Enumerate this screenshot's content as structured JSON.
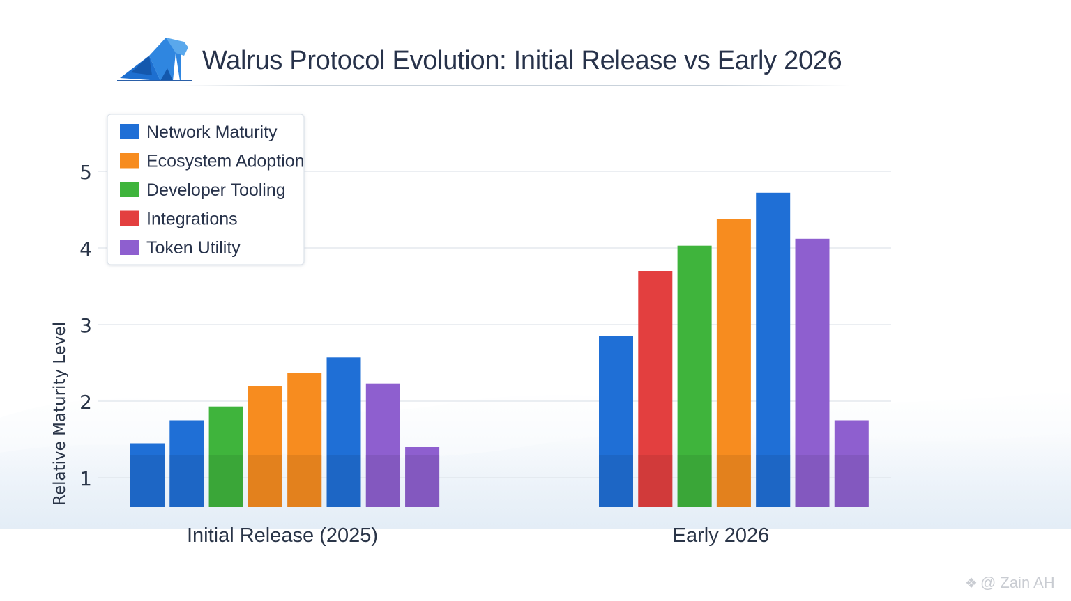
{
  "chart_data": {
    "type": "bar",
    "title": "Walrus Protocol Evolution: Initial Release vs Early 2026",
    "xlabel": "",
    "ylabel": "Relative Maturity Level",
    "ylim": [
      0.6,
      5.5
    ],
    "yticks": [
      1,
      2,
      3,
      4,
      5
    ],
    "grid": true,
    "legend_position": "top-left",
    "legend": [
      {
        "name": "Network Maturity",
        "color": "#1f6fd6"
      },
      {
        "name": "Ecosystem Adoption",
        "color": "#f78c1f"
      },
      {
        "name": "Developer Tooling",
        "color": "#3fb43c"
      },
      {
        "name": "Integrations",
        "color": "#e33f3f"
      },
      {
        "name": "Token Utility",
        "color": "#8e5fcf"
      }
    ],
    "groups": [
      {
        "label": "Initial Release (2025)",
        "bars": [
          {
            "series": "Network Maturity",
            "value": 1.45
          },
          {
            "series": "Network Maturity",
            "value": 1.75
          },
          {
            "series": "Developer Tooling",
            "value": 1.93
          },
          {
            "series": "Ecosystem Adoption",
            "value": 2.2
          },
          {
            "series": "Ecosystem Adoption",
            "value": 2.37
          },
          {
            "series": "Network Maturity",
            "value": 2.57
          },
          {
            "series": "Token Utility",
            "value": 2.23
          },
          {
            "series": "Token Utility",
            "value": 1.4
          }
        ]
      },
      {
        "label": "Early 2026",
        "bars": [
          {
            "series": "Network Maturity",
            "value": 2.85
          },
          {
            "series": "Integrations",
            "value": 3.7
          },
          {
            "series": "Developer Tooling",
            "value": 4.03
          },
          {
            "series": "Ecosystem Adoption",
            "value": 4.38
          },
          {
            "series": "Network Maturity",
            "value": 4.72
          },
          {
            "series": "Token Utility",
            "value": 4.12
          },
          {
            "series": "Token Utility",
            "value": 1.75
          }
        ]
      }
    ]
  },
  "watermark": "@ Zain AH",
  "watermark_icon": "binance-icon"
}
